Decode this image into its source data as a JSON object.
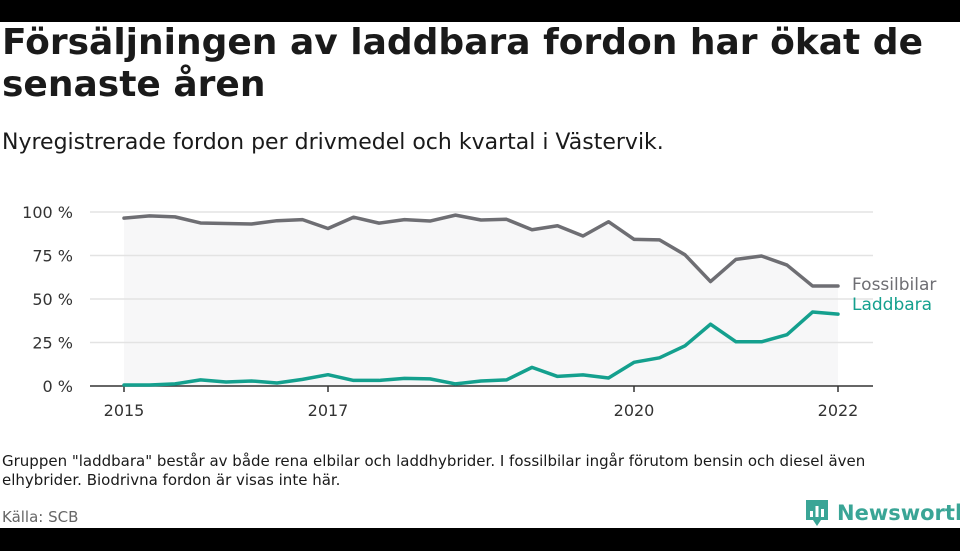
{
  "title": "Försäljningen av laddbara fordon har ökat de senaste åren",
  "subtitle": "Nyregistrerade fordon per drivmedel och kvartal i Västervik.",
  "note": "Gruppen \"laddbara\" består av både rena elbilar och laddhybrider. I fossilbilar ingår förutom bensin och diesel även elhybrider. Biodrivna fordon är visas inte här.",
  "source": "Källa: SCB",
  "brand": "Newsworthy",
  "colors": {
    "fossil": "#6e6e73",
    "laddbara": "#14a08e",
    "brand": "#3aa596"
  },
  "icons": {
    "logo": "newsworthy-logo-icon"
  },
  "chart_data": {
    "type": "line",
    "x_start": "2015Q1",
    "x_end": "2022Q1",
    "x_ticks": [
      "2015",
      "2017",
      "2020",
      "2022"
    ],
    "y_ticks": [
      "0 %",
      "25 %",
      "50 %",
      "75 %",
      "100 %"
    ],
    "ylim": [
      0,
      100
    ],
    "grid": true,
    "legend": "end-of-line labels",
    "x": [
      "2015Q1",
      "2015Q2",
      "2015Q3",
      "2015Q4",
      "2016Q1",
      "2016Q2",
      "2016Q3",
      "2016Q4",
      "2017Q1",
      "2017Q2",
      "2017Q3",
      "2017Q4",
      "2018Q1",
      "2018Q2",
      "2018Q3",
      "2018Q4",
      "2019Q1",
      "2019Q2",
      "2019Q3",
      "2019Q4",
      "2020Q1",
      "2020Q2",
      "2020Q3",
      "2020Q4",
      "2021Q1",
      "2021Q2",
      "2021Q3",
      "2021Q4",
      "2022Q1"
    ],
    "series": [
      {
        "name": "Fossilbilar",
        "values": [
          96.5,
          97.8,
          97.2,
          93.7,
          93.4,
          93.1,
          95,
          95.6,
          90.5,
          97,
          93.6,
          95.6,
          94.8,
          98.2,
          95.4,
          95.8,
          89.8,
          92.1,
          86.2,
          94.4,
          84.3,
          84,
          75.4,
          60,
          72.8,
          74.7,
          69.5,
          57.5,
          57.5
        ]
      },
      {
        "name": "Laddbara",
        "values": [
          0.6,
          0.6,
          1.2,
          3.5,
          2.3,
          2.9,
          1.7,
          3.8,
          6.5,
          3.2,
          3.2,
          4.4,
          4.1,
          1.2,
          2.9,
          3.5,
          10.7,
          5.5,
          6.4,
          4.6,
          13.6,
          16.2,
          23.1,
          35.5,
          25.4,
          25.4,
          29.5,
          42.5,
          41.3
        ]
      }
    ]
  }
}
